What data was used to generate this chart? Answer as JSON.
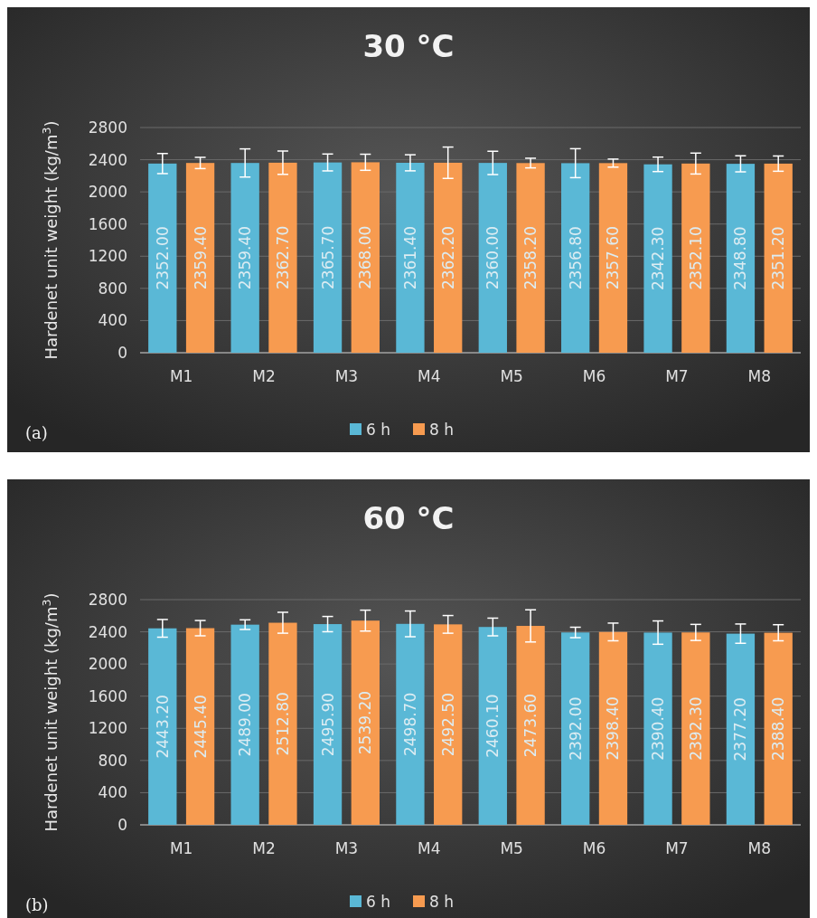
{
  "chart_data": [
    {
      "type": "bar",
      "title": "30 °C",
      "ylabel": "Hardenet unit weight (kg/m$^{3}$)",
      "categories": [
        "M1",
        "M2",
        "M3",
        "M4",
        "M5",
        "M6",
        "M7",
        "M8"
      ],
      "series": [
        {
          "name": "6 h",
          "color": "#5ab8d6",
          "values": [
            2352.0,
            2359.4,
            2365.7,
            2361.4,
            2360.0,
            2356.8,
            2342.3,
            2348.8
          ],
          "errors": [
            125,
            175,
            105,
            100,
            145,
            180,
            90,
            100
          ],
          "value_labels": [
            "2352.00",
            "2359.40",
            "2365.70",
            "2361.40",
            "2360.00",
            "2356.80",
            "2342.30",
            "2348.80"
          ]
        },
        {
          "name": "8 h",
          "color": "#f79b50",
          "values": [
            2359.4,
            2362.7,
            2368.0,
            2362.2,
            2358.2,
            2357.6,
            2352.1,
            2351.2
          ],
          "errors": [
            70,
            145,
            100,
            195,
            60,
            50,
            130,
            95
          ],
          "value_labels": [
            "2359.40",
            "2362.70",
            "2368.00",
            "2362.20",
            "2358.20",
            "2357.60",
            "2352.10",
            "2351.20"
          ]
        }
      ],
      "ylim": [
        0,
        2800
      ],
      "yticks": [
        0,
        400,
        800,
        1200,
        1600,
        2000,
        2400,
        2800
      ],
      "grid": "y",
      "legend": "bottom",
      "annotations": [
        "(a)"
      ]
    },
    {
      "type": "bar",
      "title": "60 °C",
      "ylabel": "Hardenet unit weight  (kg/m$^{3}$)",
      "categories": [
        "M1",
        "M2",
        "M3",
        "M4",
        "M5",
        "M6",
        "M7",
        "M8"
      ],
      "series": [
        {
          "name": "6 h",
          "color": "#5ab8d6",
          "values": [
            2443.2,
            2489.0,
            2495.9,
            2498.7,
            2460.1,
            2392.0,
            2390.4,
            2377.2
          ],
          "errors": [
            110,
            60,
            95,
            160,
            110,
            65,
            145,
            120
          ],
          "value_labels": [
            "2443.20",
            "2489.00",
            "2495.90",
            "2498.70",
            "2460.10",
            "2392.00",
            "2390.40",
            "2377.20"
          ]
        },
        {
          "name": "8 h",
          "color": "#f79b50",
          "values": [
            2445.4,
            2512.8,
            2539.2,
            2492.5,
            2473.6,
            2398.4,
            2392.3,
            2388.4
          ],
          "errors": [
            95,
            130,
            130,
            110,
            200,
            110,
            100,
            100
          ],
          "value_labels": [
            "2445.40",
            "2512.80",
            "2539.20",
            "2492.50",
            "2473.60",
            "2398.40",
            "2392.30",
            "2388.40"
          ]
        }
      ],
      "ylim": [
        0,
        2800
      ],
      "yticks": [
        0,
        400,
        800,
        1200,
        1600,
        2000,
        2400,
        2800
      ],
      "grid": "y",
      "legend": "bottom",
      "annotations": [
        "(b)"
      ]
    }
  ]
}
